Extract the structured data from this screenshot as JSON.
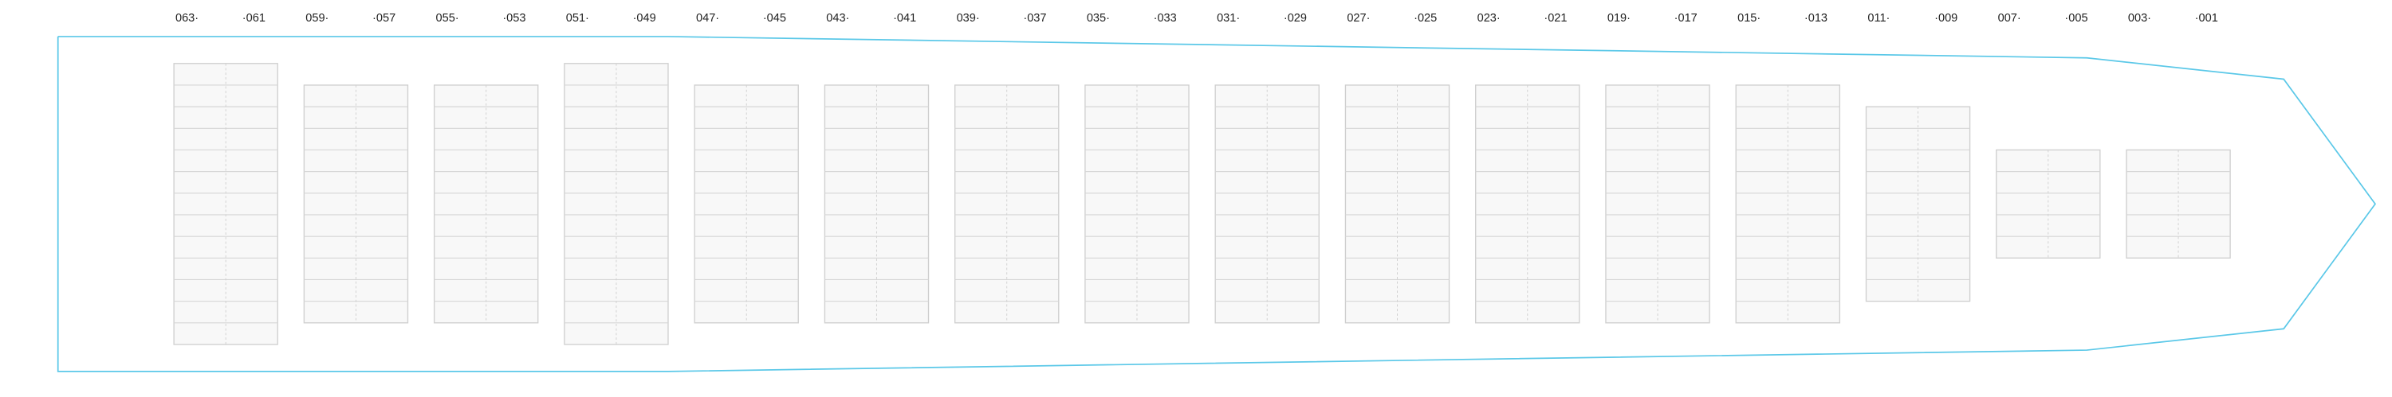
{
  "bays": [
    {
      "left": "063·",
      "right": "·061"
    },
    {
      "left": "059·",
      "right": "·057"
    },
    {
      "left": "055·",
      "right": "·053"
    },
    {
      "left": "051·",
      "right": "·049"
    },
    {
      "left": "047·",
      "right": "·045"
    },
    {
      "left": "043·",
      "right": "·041"
    },
    {
      "left": "039·",
      "right": "·037"
    },
    {
      "left": "035·",
      "right": "·033"
    },
    {
      "left": "031·",
      "right": "·029"
    },
    {
      "left": "027·",
      "right": "·025"
    },
    {
      "left": "023·",
      "right": "·021"
    },
    {
      "left": "019·",
      "right": "·017"
    },
    {
      "left": "015·",
      "right": "·013"
    },
    {
      "left": "011·",
      "right": "·009"
    },
    {
      "left": "007·",
      "right": "·005"
    },
    {
      "left": "003·",
      "right": "·001"
    }
  ]
}
